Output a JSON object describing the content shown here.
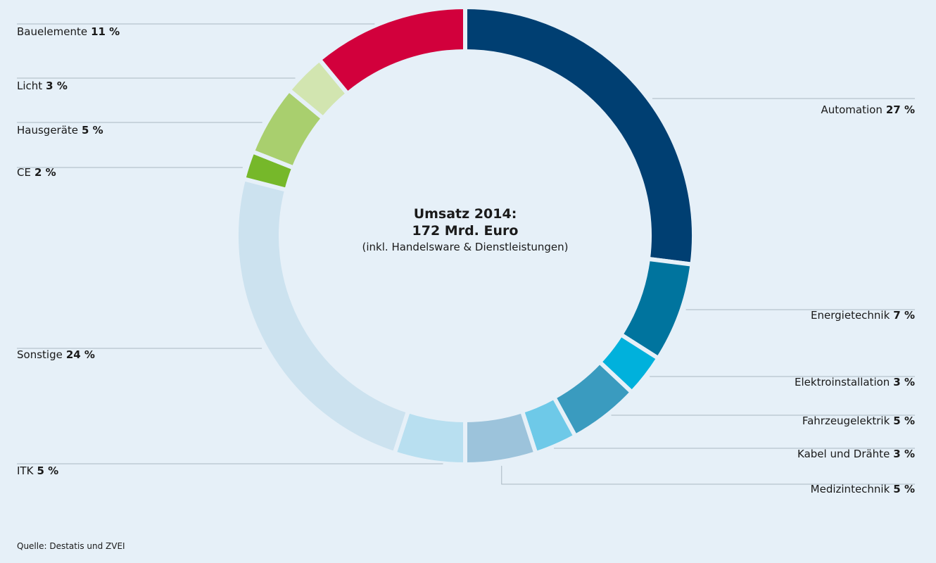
{
  "chart_data": {
    "type": "donut",
    "center_title": [
      "Umsatz 2014:",
      "172 Mrd. Euro"
    ],
    "center_subtitle": "(inkl. Handelsware & Dienstleistungen)",
    "source": "Quelle: Destatis und ZVEI",
    "categories": [
      "Automation",
      "Energietechnik",
      "Elektroinstallation",
      "Fahrzeugelektrik",
      "Kabel und Drähte",
      "Medizintechnik",
      "ITK",
      "Sonstige",
      "CE",
      "Hausgeräte",
      "Licht",
      "Bauelemente"
    ],
    "values": [
      27,
      7,
      3,
      5,
      3,
      5,
      5,
      24,
      2,
      5,
      3,
      11
    ],
    "value_labels": [
      "27 %",
      "7 %",
      "3 %",
      "5 %",
      "3 %",
      "5 %",
      "5 %",
      "24 %",
      "2 %",
      "5 %",
      "3 %",
      "11 %"
    ],
    "colors": [
      "#003f72",
      "#00749e",
      "#00b1dc",
      "#3a9bbf",
      "#6ec9e8",
      "#9cc3db",
      "#b8dff0",
      "#cce2ef",
      "#76b82a",
      "#a9cf6e",
      "#d2e5b0",
      "#d2003c"
    ]
  }
}
